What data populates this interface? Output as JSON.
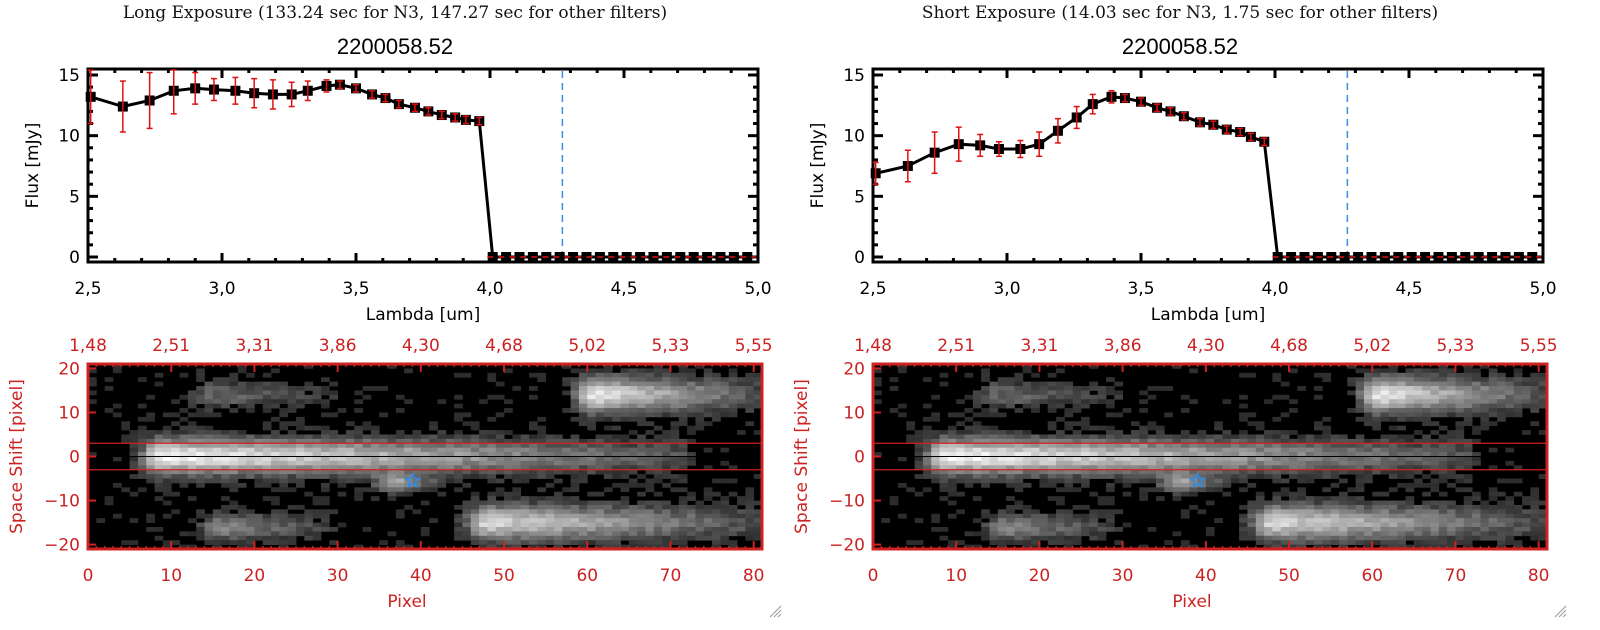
{
  "panels": [
    {
      "id": "long",
      "exposure_title": "Long Exposure (133.24 sec for N3, 147.27 sec for other filters)",
      "object_title": "2200058.52"
    },
    {
      "id": "short",
      "exposure_title": "Short Exposure (14.03 sec for N3, 1.75 sec for other filters)",
      "object_title": "2200058.52"
    }
  ],
  "colors": {
    "line": "#000000",
    "errorbar": "#e01010",
    "reference_line": "#3a8ee6",
    "zero_line": "#e01010",
    "image_frame": "#cc2222",
    "star_marker": "#2a8cf0"
  },
  "chart_data": [
    {
      "type": "line",
      "panel": "long",
      "title": "2200058.52",
      "xlabel": "Lambda [um]",
      "ylabel": "Flux [mJy]",
      "xlim": [
        2.5,
        5.0
      ],
      "ylim": [
        -0.3,
        15.5
      ],
      "xticks": [
        "2.5",
        "3.0",
        "3.5",
        "4.0",
        "4.5",
        "5.0"
      ],
      "yticks": [
        "0",
        "5",
        "10",
        "15"
      ],
      "reference_line_x": 4.27,
      "zero_line_y": 0,
      "series": [
        {
          "name": "flux",
          "x": [
            2.51,
            2.63,
            2.73,
            2.82,
            2.9,
            2.97,
            3.05,
            3.12,
            3.19,
            3.26,
            3.32,
            3.39,
            3.44,
            3.5,
            3.56,
            3.61,
            3.66,
            3.72,
            3.77,
            3.82,
            3.87,
            3.91,
            3.96,
            4.01,
            4.06,
            4.11,
            4.16,
            4.21,
            4.26,
            4.31,
            4.36,
            4.41,
            4.46,
            4.51,
            4.56,
            4.61,
            4.66,
            4.71,
            4.76,
            4.81,
            4.86,
            4.91,
            4.96
          ],
          "y": [
            13.2,
            12.4,
            12.9,
            13.7,
            13.9,
            13.8,
            13.7,
            13.5,
            13.4,
            13.4,
            13.7,
            14.1,
            14.2,
            13.9,
            13.4,
            13.1,
            12.6,
            12.3,
            12.0,
            11.7,
            11.5,
            11.3,
            11.2,
            0,
            0,
            0,
            0,
            0,
            0,
            0,
            0,
            0,
            0,
            0,
            0,
            0,
            0,
            0,
            0,
            0,
            0,
            0,
            0
          ],
          "yerr": [
            2.2,
            2.1,
            2.3,
            1.9,
            1.3,
            0.9,
            1.1,
            1.2,
            1.2,
            1.0,
            0.8,
            0.5,
            0.3,
            0.3,
            0.3,
            0.3,
            0.3,
            0.3,
            0.3,
            0.3,
            0.3,
            0.3,
            0.3,
            0,
            0,
            0,
            0,
            0,
            0,
            0,
            0,
            0,
            0,
            0,
            0,
            0,
            0,
            0,
            0,
            0,
            0,
            0,
            0
          ]
        }
      ]
    },
    {
      "type": "line",
      "panel": "short",
      "title": "2200058.52",
      "xlabel": "Lambda [um]",
      "ylabel": "Flux [mJy]",
      "xlim": [
        2.5,
        5.0
      ],
      "ylim": [
        -0.3,
        15.5
      ],
      "xticks": [
        "2.5",
        "3.0",
        "3.5",
        "4.0",
        "4.5",
        "5.0"
      ],
      "yticks": [
        "0",
        "5",
        "10",
        "15"
      ],
      "reference_line_x": 4.27,
      "zero_line_y": 0,
      "series": [
        {
          "name": "flux",
          "x": [
            2.51,
            2.63,
            2.73,
            2.82,
            2.9,
            2.97,
            3.05,
            3.12,
            3.19,
            3.26,
            3.32,
            3.39,
            3.44,
            3.5,
            3.56,
            3.61,
            3.66,
            3.72,
            3.77,
            3.82,
            3.87,
            3.91,
            3.96,
            4.01,
            4.06,
            4.11,
            4.16,
            4.21,
            4.26,
            4.31,
            4.36,
            4.41,
            4.46,
            4.51,
            4.56,
            4.61,
            4.66,
            4.71,
            4.76,
            4.81,
            4.86,
            4.91,
            4.96
          ],
          "y": [
            6.9,
            7.5,
            8.6,
            9.3,
            9.2,
            8.9,
            8.9,
            9.3,
            10.4,
            11.5,
            12.6,
            13.2,
            13.1,
            12.8,
            12.3,
            12.0,
            11.6,
            11.1,
            10.9,
            10.5,
            10.3,
            9.9,
            9.5,
            0,
            0,
            0,
            0,
            0,
            0,
            0,
            0,
            0,
            0,
            0,
            0,
            0,
            0,
            0,
            0,
            0,
            0,
            0,
            0
          ],
          "yerr": [
            0.9,
            1.3,
            1.7,
            1.4,
            0.9,
            0.6,
            0.7,
            1.0,
            1.0,
            0.9,
            0.8,
            0.5,
            0.3,
            0.3,
            0.3,
            0.3,
            0.3,
            0.3,
            0.3,
            0.3,
            0.3,
            0.3,
            0.3,
            0,
            0,
            0,
            0,
            0,
            0,
            0,
            0,
            0,
            0,
            0,
            0,
            0,
            0,
            0,
            0,
            0,
            0,
            0,
            0
          ]
        }
      ]
    },
    {
      "type": "heatmap",
      "panel": "long",
      "xlabel": "Pixel",
      "ylabel": "Space Shift [pixel]",
      "xlim": [
        0,
        81
      ],
      "ylim": [
        -21,
        21
      ],
      "xticks": [
        "0",
        "10",
        "20",
        "30",
        "40",
        "50",
        "60",
        "70",
        "80"
      ],
      "yticks": [
        "-20",
        "-10",
        "0",
        "10",
        "20"
      ],
      "top_xticks": [
        "1.48",
        "2.51",
        "3.31",
        "3.86",
        "4.30",
        "4.68",
        "5.02",
        "5.33",
        "5.55"
      ],
      "aperture_lines_y": [
        3,
        -3
      ],
      "center_line_y": 0,
      "star_marker": {
        "x": 39,
        "y": -5.5
      },
      "sources": [
        {
          "x0": 6,
          "x1": 72,
          "y": 0,
          "peak_x": 9,
          "brightness": 1.0,
          "width": 4
        },
        {
          "x0": 56,
          "x1": 81,
          "y": 14,
          "peak_x": 61,
          "brightness": 0.92,
          "width": 4
        },
        {
          "x0": 44,
          "x1": 81,
          "y": -15,
          "peak_x": 48,
          "brightness": 0.85,
          "width": 4
        },
        {
          "x0": 6,
          "x1": 30,
          "y": 14,
          "peak_x": 15,
          "brightness": 0.35,
          "width": 3
        },
        {
          "x0": 12,
          "x1": 30,
          "y": -16,
          "peak_x": 16,
          "brightness": 0.5,
          "width": 3
        },
        {
          "x0": 35,
          "x1": 42,
          "y": -6,
          "peak_x": 37,
          "brightness": 0.55,
          "width": 2
        }
      ]
    },
    {
      "type": "heatmap",
      "panel": "short",
      "xlabel": "Pixel",
      "ylabel": "Space Shift [pixel]",
      "xlim": [
        0,
        81
      ],
      "ylim": [
        -21,
        21
      ],
      "xticks": [
        "0",
        "10",
        "20",
        "30",
        "40",
        "50",
        "60",
        "70",
        "80"
      ],
      "yticks": [
        "-20",
        "-10",
        "0",
        "10",
        "20"
      ],
      "top_xticks": [
        "1.48",
        "2.51",
        "3.31",
        "3.86",
        "4.30",
        "4.68",
        "5.02",
        "5.33",
        "5.55"
      ],
      "aperture_lines_y": [
        3,
        -3
      ],
      "center_line_y": 0,
      "star_marker": {
        "x": 39,
        "y": -5.5
      },
      "sources": [
        {
          "x0": 6,
          "x1": 72,
          "y": 0,
          "peak_x": 9,
          "brightness": 1.0,
          "width": 4
        },
        {
          "x0": 56,
          "x1": 81,
          "y": 14,
          "peak_x": 61,
          "brightness": 0.92,
          "width": 4
        },
        {
          "x0": 44,
          "x1": 81,
          "y": -15,
          "peak_x": 48,
          "brightness": 0.85,
          "width": 4
        },
        {
          "x0": 6,
          "x1": 30,
          "y": 14,
          "peak_x": 15,
          "brightness": 0.35,
          "width": 3
        },
        {
          "x0": 12,
          "x1": 30,
          "y": -16,
          "peak_x": 16,
          "brightness": 0.5,
          "width": 3
        },
        {
          "x0": 35,
          "x1": 42,
          "y": -6,
          "peak_x": 37,
          "brightness": 0.55,
          "width": 2
        }
      ]
    }
  ]
}
